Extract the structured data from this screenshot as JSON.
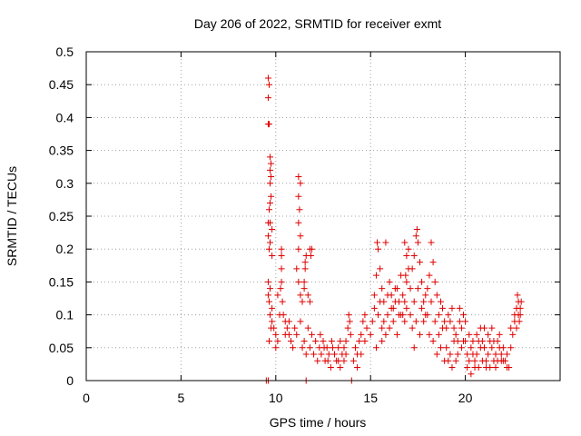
{
  "chart_data": {
    "type": "scatter",
    "title": "Day 206 of 2022, SRMTID for receiver exmt",
    "xlabel": "GPS time / hours",
    "ylabel": "SRMTID / TECUs",
    "xlim": [
      0,
      25
    ],
    "ylim": [
      0,
      0.5
    ],
    "x_ticks": [
      0,
      5,
      10,
      15,
      20
    ],
    "x_tick_labels": [
      "0",
      "5",
      "10",
      "15",
      "20"
    ],
    "y_ticks": [
      0,
      0.05,
      0.1,
      0.15,
      0.2,
      0.25,
      0.3,
      0.35,
      0.4,
      0.45,
      0.5
    ],
    "y_tick_labels": [
      "0",
      "0.05",
      "0.1",
      "0.15",
      "0.2",
      "0.25",
      "0.3",
      "0.35",
      "0.4",
      "0.45",
      "0.5"
    ],
    "grid": true,
    "marker": "+",
    "series": [
      {
        "name": "SRMTID",
        "color": "#e00000",
        "points": [
          [
            9.5,
            0.0
          ],
          [
            9.6,
            0.0
          ],
          [
            11.6,
            0.0
          ],
          [
            14.0,
            0.0
          ],
          [
            9.6,
            0.46
          ],
          [
            9.65,
            0.45
          ],
          [
            9.6,
            0.43
          ],
          [
            9.65,
            0.39
          ],
          [
            9.6,
            0.39
          ],
          [
            9.7,
            0.34
          ],
          [
            9.75,
            0.33
          ],
          [
            9.7,
            0.32
          ],
          [
            9.75,
            0.31
          ],
          [
            9.7,
            0.3
          ],
          [
            9.75,
            0.28
          ],
          [
            9.7,
            0.27
          ],
          [
            9.65,
            0.26
          ],
          [
            9.6,
            0.24
          ],
          [
            9.7,
            0.24
          ],
          [
            9.8,
            0.23
          ],
          [
            9.6,
            0.22
          ],
          [
            9.7,
            0.21
          ],
          [
            9.65,
            0.2
          ],
          [
            9.8,
            0.19
          ],
          [
            9.6,
            0.15
          ],
          [
            9.7,
            0.14
          ],
          [
            9.6,
            0.13
          ],
          [
            9.65,
            0.12
          ],
          [
            9.8,
            0.11
          ],
          [
            9.7,
            0.1
          ],
          [
            9.8,
            0.09
          ],
          [
            9.75,
            0.08
          ],
          [
            9.9,
            0.08
          ],
          [
            9.65,
            0.06
          ],
          [
            10.0,
            0.07
          ],
          [
            10.1,
            0.06
          ],
          [
            10.0,
            0.05
          ],
          [
            10.2,
            0.1
          ],
          [
            10.1,
            0.13
          ],
          [
            10.3,
            0.2
          ],
          [
            10.3,
            0.19
          ],
          [
            10.3,
            0.17
          ],
          [
            10.3,
            0.15
          ],
          [
            10.25,
            0.14
          ],
          [
            10.35,
            0.12
          ],
          [
            10.4,
            0.1
          ],
          [
            10.5,
            0.09
          ],
          [
            10.6,
            0.08
          ],
          [
            10.7,
            0.07
          ],
          [
            10.8,
            0.06
          ],
          [
            10.9,
            0.05
          ],
          [
            10.5,
            0.07
          ],
          [
            10.7,
            0.09
          ],
          [
            11.2,
            0.31
          ],
          [
            11.3,
            0.3
          ],
          [
            11.2,
            0.28
          ],
          [
            11.25,
            0.26
          ],
          [
            11.2,
            0.24
          ],
          [
            11.3,
            0.22
          ],
          [
            11.2,
            0.2
          ],
          [
            11.1,
            0.17
          ],
          [
            11.2,
            0.15
          ],
          [
            11.3,
            0.13
          ],
          [
            11.4,
            0.12
          ],
          [
            11.5,
            0.14
          ],
          [
            11.55,
            0.18
          ],
          [
            11.6,
            0.19
          ],
          [
            11.55,
            0.17
          ],
          [
            11.5,
            0.15
          ],
          [
            11.8,
            0.2
          ],
          [
            11.85,
            0.19
          ],
          [
            11.9,
            0.2
          ],
          [
            11.7,
            0.13
          ],
          [
            11.8,
            0.12
          ],
          [
            11.0,
            0.08
          ],
          [
            11.1,
            0.07
          ],
          [
            11.3,
            0.09
          ],
          [
            11.5,
            0.06
          ],
          [
            11.7,
            0.08
          ],
          [
            11.8,
            0.05
          ],
          [
            11.9,
            0.07
          ],
          [
            12.0,
            0.04
          ],
          [
            11.6,
            0.04
          ],
          [
            11.4,
            0.05
          ],
          [
            12.1,
            0.06
          ],
          [
            12.2,
            0.03
          ],
          [
            12.3,
            0.05
          ],
          [
            12.4,
            0.04
          ],
          [
            12.5,
            0.06
          ],
          [
            12.6,
            0.03
          ],
          [
            12.7,
            0.05
          ],
          [
            12.8,
            0.04
          ],
          [
            12.9,
            0.02
          ],
          [
            13.0,
            0.05
          ],
          [
            12.35,
            0.07
          ],
          [
            12.55,
            0.05
          ],
          [
            12.75,
            0.03
          ],
          [
            12.95,
            0.06
          ],
          [
            13.1,
            0.04
          ],
          [
            13.2,
            0.03
          ],
          [
            13.3,
            0.05
          ],
          [
            13.4,
            0.02
          ],
          [
            13.5,
            0.04
          ],
          [
            13.6,
            0.03
          ],
          [
            13.7,
            0.06
          ],
          [
            13.8,
            0.08
          ],
          [
            13.85,
            0.1
          ],
          [
            13.9,
            0.09
          ],
          [
            13.95,
            0.07
          ],
          [
            13.7,
            0.04
          ],
          [
            13.6,
            0.05
          ],
          [
            13.4,
            0.06
          ],
          [
            13.3,
            0.03
          ],
          [
            14.1,
            0.03
          ],
          [
            14.2,
            0.05
          ],
          [
            14.3,
            0.04
          ],
          [
            14.4,
            0.06
          ],
          [
            14.5,
            0.07
          ],
          [
            14.6,
            0.09
          ],
          [
            14.7,
            0.1
          ],
          [
            14.8,
            0.08
          ],
          [
            14.3,
            0.02
          ],
          [
            14.5,
            0.04
          ],
          [
            14.7,
            0.06
          ],
          [
            15.0,
            0.07
          ],
          [
            15.1,
            0.09
          ],
          [
            15.2,
            0.13
          ],
          [
            15.3,
            0.16
          ],
          [
            15.35,
            0.21
          ],
          [
            15.4,
            0.2
          ],
          [
            15.5,
            0.17
          ],
          [
            15.6,
            0.14
          ],
          [
            15.7,
            0.12
          ],
          [
            15.8,
            0.21
          ],
          [
            15.2,
            0.11
          ],
          [
            15.4,
            0.1
          ],
          [
            15.6,
            0.08
          ],
          [
            15.8,
            0.07
          ],
          [
            15.9,
            0.1
          ],
          [
            15.3,
            0.05
          ],
          [
            15.5,
            0.12
          ],
          [
            15.7,
            0.09
          ],
          [
            15.9,
            0.13
          ],
          [
            15.6,
            0.06
          ],
          [
            16.0,
            0.15
          ],
          [
            16.1,
            0.13
          ],
          [
            16.2,
            0.11
          ],
          [
            16.3,
            0.12
          ],
          [
            16.4,
            0.14
          ],
          [
            16.5,
            0.1
          ],
          [
            16.6,
            0.16
          ],
          [
            16.7,
            0.13
          ],
          [
            16.8,
            0.09
          ],
          [
            16.9,
            0.11
          ],
          [
            16.0,
            0.08
          ],
          [
            16.2,
            0.09
          ],
          [
            16.4,
            0.07
          ],
          [
            16.6,
            0.1
          ],
          [
            16.8,
            0.12
          ],
          [
            16.1,
            0.11
          ],
          [
            16.3,
            0.14
          ],
          [
            16.5,
            0.12
          ],
          [
            16.7,
            0.1
          ],
          [
            16.9,
            0.15
          ],
          [
            16.8,
            0.21
          ],
          [
            16.9,
            0.19
          ],
          [
            17.0,
            0.17
          ],
          [
            16.85,
            0.16
          ],
          [
            17.0,
            0.2
          ],
          [
            17.1,
            0.14
          ],
          [
            17.2,
            0.17
          ],
          [
            17.3,
            0.19
          ],
          [
            17.4,
            0.22
          ],
          [
            17.5,
            0.21
          ],
          [
            17.45,
            0.23
          ],
          [
            17.6,
            0.18
          ],
          [
            17.7,
            0.15
          ],
          [
            17.8,
            0.12
          ],
          [
            17.9,
            0.1
          ],
          [
            17.1,
            0.1
          ],
          [
            17.3,
            0.12
          ],
          [
            17.5,
            0.14
          ],
          [
            17.7,
            0.11
          ],
          [
            17.9,
            0.13
          ],
          [
            17.2,
            0.08
          ],
          [
            17.4,
            0.09
          ],
          [
            17.6,
            0.07
          ],
          [
            17.8,
            0.09
          ],
          [
            17.3,
            0.05
          ],
          [
            18.0,
            0.14
          ],
          [
            18.1,
            0.16
          ],
          [
            18.2,
            0.21
          ],
          [
            18.3,
            0.18
          ],
          [
            18.4,
            0.15
          ],
          [
            18.5,
            0.13
          ],
          [
            18.6,
            0.1
          ],
          [
            18.7,
            0.12
          ],
          [
            18.8,
            0.11
          ],
          [
            18.9,
            0.09
          ],
          [
            18.0,
            0.1
          ],
          [
            18.2,
            0.12
          ],
          [
            18.4,
            0.09
          ],
          [
            18.6,
            0.07
          ],
          [
            18.8,
            0.08
          ],
          [
            18.1,
            0.07
          ],
          [
            18.3,
            0.06
          ],
          [
            18.5,
            0.04
          ],
          [
            18.7,
            0.05
          ],
          [
            18.9,
            0.03
          ],
          [
            19.0,
            0.08
          ],
          [
            19.1,
            0.1
          ],
          [
            19.2,
            0.09
          ],
          [
            19.3,
            0.11
          ],
          [
            19.4,
            0.08
          ],
          [
            19.5,
            0.07
          ],
          [
            19.6,
            0.06
          ],
          [
            19.7,
            0.09
          ],
          [
            19.8,
            0.08
          ],
          [
            19.9,
            0.06
          ],
          [
            19.0,
            0.05
          ],
          [
            19.2,
            0.04
          ],
          [
            19.4,
            0.06
          ],
          [
            19.6,
            0.04
          ],
          [
            19.8,
            0.05
          ],
          [
            19.1,
            0.03
          ],
          [
            19.3,
            0.02
          ],
          [
            19.5,
            0.03
          ],
          [
            19.7,
            0.11
          ],
          [
            19.9,
            0.1
          ],
          [
            20.0,
            0.06
          ],
          [
            20.1,
            0.04
          ],
          [
            20.2,
            0.03
          ],
          [
            20.3,
            0.05
          ],
          [
            20.4,
            0.04
          ],
          [
            20.5,
            0.02
          ],
          [
            20.6,
            0.04
          ],
          [
            20.7,
            0.06
          ],
          [
            20.8,
            0.05
          ],
          [
            20.9,
            0.03
          ],
          [
            20.0,
            0.09
          ],
          [
            20.2,
            0.07
          ],
          [
            20.4,
            0.06
          ],
          [
            20.6,
            0.07
          ],
          [
            20.8,
            0.08
          ],
          [
            20.1,
            0.02
          ],
          [
            20.3,
            0.01
          ],
          [
            20.5,
            0.03
          ],
          [
            20.7,
            0.02
          ],
          [
            20.9,
            0.06
          ],
          [
            21.0,
            0.05
          ],
          [
            21.1,
            0.03
          ],
          [
            21.2,
            0.04
          ],
          [
            21.3,
            0.06
          ],
          [
            21.4,
            0.05
          ],
          [
            21.5,
            0.03
          ],
          [
            21.6,
            0.04
          ],
          [
            21.7,
            0.06
          ],
          [
            21.8,
            0.05
          ],
          [
            21.9,
            0.03
          ],
          [
            21.0,
            0.08
          ],
          [
            21.2,
            0.07
          ],
          [
            21.4,
            0.08
          ],
          [
            21.6,
            0.02
          ],
          [
            21.8,
            0.07
          ],
          [
            21.1,
            0.02
          ],
          [
            21.3,
            0.02
          ],
          [
            21.5,
            0.06
          ],
          [
            21.7,
            0.03
          ],
          [
            21.9,
            0.04
          ],
          [
            22.0,
            0.05
          ],
          [
            22.1,
            0.03
          ],
          [
            22.2,
            0.04
          ],
          [
            22.3,
            0.02
          ],
          [
            22.4,
            0.05
          ],
          [
            22.5,
            0.07
          ],
          [
            22.6,
            0.09
          ],
          [
            22.7,
            0.08
          ],
          [
            22.8,
            0.1
          ],
          [
            22.9,
            0.11
          ],
          [
            22.0,
            0.03
          ],
          [
            22.2,
            0.02
          ],
          [
            22.4,
            0.08
          ],
          [
            22.6,
            0.1
          ],
          [
            22.8,
            0.12
          ],
          [
            22.7,
            0.11
          ],
          [
            22.9,
            0.1
          ],
          [
            22.75,
            0.13
          ],
          [
            22.85,
            0.09
          ],
          [
            22.95,
            0.12
          ]
        ]
      }
    ]
  }
}
